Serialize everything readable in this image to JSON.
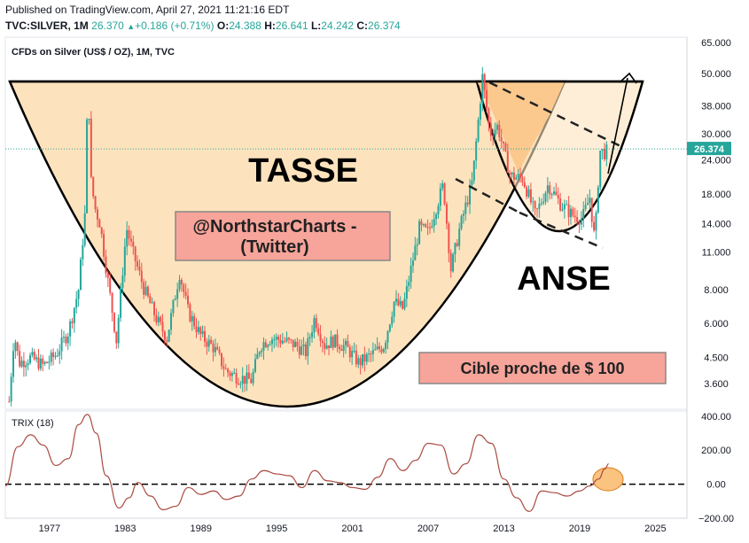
{
  "header": {
    "published": "Published on TradingView.com, April 27, 2021 11:21:16 EDT",
    "symbol": "TVC:SILVER, 1M",
    "last": "26.370",
    "change": "+0.186 (+0.71%)",
    "o_label": "O:",
    "o_value": "24.388",
    "h_label": "H:",
    "h_value": "26.641",
    "l_label": "L:",
    "l_value": "24.242",
    "c_label": "C:",
    "c_value": "26.374"
  },
  "chart_data": [
    {
      "type": "candlestick",
      "title": "CFDs on Silver (US$ / OZ), 1M, TVC",
      "y_scale": "log",
      "ylim": [
        2.9,
        68
      ],
      "xlim": [
        1973.5,
        2027.5
      ],
      "y_ticks": [
        "65.000",
        "50.000",
        "38.000",
        "30.000",
        "24.000",
        "18.000",
        "14.000",
        "11.000",
        "8.000",
        "6.000",
        "4.500",
        "3.600"
      ],
      "last_price": "26.374",
      "last_price_value": 26.374,
      "price_path": [
        [
          1973.8,
          3.1
        ],
        [
          1974.2,
          5.5
        ],
        [
          1974.6,
          4.3
        ],
        [
          1975.5,
          4.5
        ],
        [
          1976.5,
          4.2
        ],
        [
          1977.5,
          4.6
        ],
        [
          1978.5,
          5.6
        ],
        [
          1979.3,
          8.0
        ],
        [
          1979.8,
          15.0
        ],
        [
          1980.05,
          48.0
        ],
        [
          1980.3,
          20.0
        ],
        [
          1980.6,
          16.0
        ],
        [
          1981.0,
          14.0
        ],
        [
          1981.5,
          9.5
        ],
        [
          1982.3,
          5.2
        ],
        [
          1983.1,
          13.5
        ],
        [
          1983.6,
          11.0
        ],
        [
          1984.5,
          8.0
        ],
        [
          1985.5,
          6.2
        ],
        [
          1986.3,
          5.3
        ],
        [
          1987.3,
          9.2
        ],
        [
          1988.0,
          6.6
        ],
        [
          1989.0,
          5.4
        ],
        [
          1990.0,
          4.9
        ],
        [
          1991.0,
          4.0
        ],
        [
          1992.0,
          3.8
        ],
        [
          1993.0,
          3.7
        ],
        [
          1993.7,
          5.0
        ],
        [
          1994.5,
          5.3
        ],
        [
          1995.5,
          5.2
        ],
        [
          1996.5,
          5.0
        ],
        [
          1997.3,
          4.7
        ],
        [
          1998.0,
          6.3
        ],
        [
          1998.8,
          5.0
        ],
        [
          1999.5,
          5.2
        ],
        [
          2000.5,
          4.9
        ],
        [
          2001.5,
          4.3
        ],
        [
          2002.5,
          4.6
        ],
        [
          2003.5,
          5.0
        ],
        [
          2004.3,
          7.2
        ],
        [
          2005.0,
          6.8
        ],
        [
          2006.3,
          13.5
        ],
        [
          2007.0,
          13.0
        ],
        [
          2008.2,
          19.5
        ],
        [
          2008.8,
          9.5
        ],
        [
          2009.5,
          13.5
        ],
        [
          2010.5,
          20.0
        ],
        [
          2011.3,
          48.5
        ],
        [
          2011.9,
          30.0
        ],
        [
          2012.5,
          32.0
        ],
        [
          2013.5,
          21.0
        ],
        [
          2014.5,
          20.5
        ],
        [
          2015.5,
          15.0
        ],
        [
          2016.5,
          19.5
        ],
        [
          2017.5,
          16.5
        ],
        [
          2018.5,
          15.0
        ],
        [
          2019.2,
          14.6
        ],
        [
          2019.8,
          17.5
        ],
        [
          2020.2,
          12.0
        ],
        [
          2020.6,
          26.0
        ],
        [
          2021.0,
          25.5
        ],
        [
          2021.3,
          26.37
        ]
      ],
      "trix_period": "TRIX (18)",
      "trix_ylim": [
        -200,
        430
      ],
      "trix_ticks": [
        "400.00",
        "200.00",
        "0.00",
        "−200.00"
      ],
      "trix_path": [
        [
          1973.5,
          -10
        ],
        [
          1974.5,
          220
        ],
        [
          1975.5,
          290
        ],
        [
          1976.5,
          230
        ],
        [
          1977.5,
          110
        ],
        [
          1978.5,
          150
        ],
        [
          1979.3,
          350
        ],
        [
          1980.0,
          410
        ],
        [
          1980.7,
          300
        ],
        [
          1981.5,
          50
        ],
        [
          1982.5,
          -140
        ],
        [
          1983.3,
          -80
        ],
        [
          1984.0,
          10
        ],
        [
          1985.0,
          -70
        ],
        [
          1986.0,
          -150
        ],
        [
          1987.0,
          -130
        ],
        [
          1988.0,
          -20
        ],
        [
          1989.0,
          -60
        ],
        [
          1990.0,
          -40
        ],
        [
          1991.0,
          -90
        ],
        [
          1992.0,
          -70
        ],
        [
          1993.0,
          30
        ],
        [
          1994.0,
          80
        ],
        [
          1995.0,
          60
        ],
        [
          1996.0,
          50
        ],
        [
          1997.0,
          -20
        ],
        [
          1998.0,
          80
        ],
        [
          1999.0,
          20
        ],
        [
          2000.0,
          10
        ],
        [
          2001.0,
          -20
        ],
        [
          2002.0,
          -30
        ],
        [
          2003.0,
          40
        ],
        [
          2004.0,
          150
        ],
        [
          2005.0,
          80
        ],
        [
          2006.0,
          140
        ],
        [
          2007.0,
          240
        ],
        [
          2008.0,
          230
        ],
        [
          2009.0,
          60
        ],
        [
          2010.0,
          120
        ],
        [
          2011.0,
          290
        ],
        [
          2012.0,
          240
        ],
        [
          2013.0,
          30
        ],
        [
          2014.0,
          -80
        ],
        [
          2015.0,
          -160
        ],
        [
          2016.0,
          -40
        ],
        [
          2017.0,
          -50
        ],
        [
          2018.0,
          -70
        ],
        [
          2019.0,
          -40
        ],
        [
          2019.8,
          -10
        ],
        [
          2020.5,
          30
        ],
        [
          2021.0,
          90
        ],
        [
          2021.3,
          120
        ]
      ],
      "x_ticks": [
        "1977",
        "1983",
        "1989",
        "1995",
        "2001",
        "2007",
        "2013",
        "2019",
        "2025"
      ]
    }
  ],
  "annotations": {
    "cup_label": "TASSE",
    "handle_label": "ANSE",
    "credit_line1": "@NorthstarCharts -",
    "credit_line2": "(Twitter)",
    "target_label": "Cible proche de $ 100"
  },
  "colors": {
    "cup_fill": "#fde3bd",
    "handle_fill": "#fbc98e",
    "candle_up": "#26a69a",
    "candle_down": "#ef5350",
    "price_badge": "#26a69a",
    "trix_line": "#a94a3f",
    "label_box": "#f7a49a",
    "ellipse_fill": "#fbc380"
  }
}
